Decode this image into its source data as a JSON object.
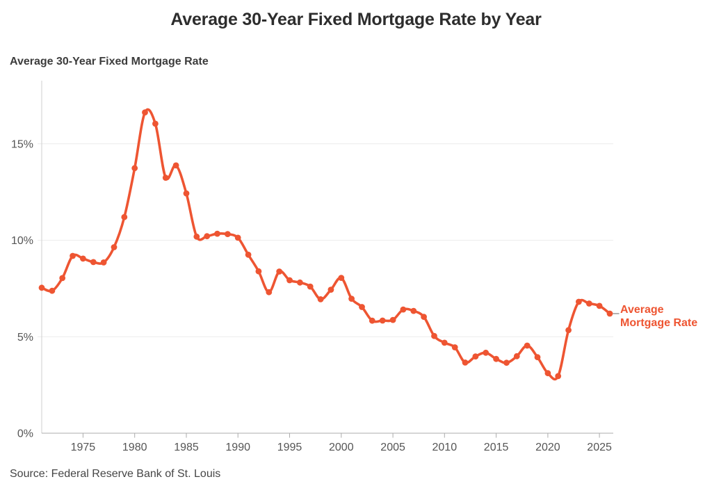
{
  "header": {
    "title": "Average 30-Year Fixed Mortgage Rate by Year"
  },
  "subtitle": "Average 30-Year Fixed Mortgage Rate",
  "source_note": "Source: Federal Reserve Bank of St. Louis",
  "legend": {
    "lines": [
      "Average",
      "Mortgage Rate"
    ]
  },
  "colors": {
    "line": "#ee5532",
    "grid": "#ececec",
    "spine": "#cfcfcf",
    "axis": "#ababab",
    "tick_label": "#555555",
    "connector": "#999999",
    "title": "#2d2d2d",
    "source_text": "#454545"
  },
  "chart_data": {
    "type": "line",
    "title": "Average 30-Year Fixed Mortgage Rate by Year",
    "axis_title": "Average 30-Year Fixed Mortgage Rate",
    "xlabel": "",
    "ylabel": "",
    "grid": "horizontal",
    "legend_position": "right-of-last-point",
    "marker": "circle",
    "xlim": [
      1971,
      2026
    ],
    "ylim": [
      0,
      18.2
    ],
    "xticks": [
      1975,
      1980,
      1985,
      1990,
      1995,
      2000,
      2005,
      2010,
      2015,
      2020,
      2025
    ],
    "yticks": [
      0,
      5,
      10,
      15
    ],
    "ytick_labels": [
      "0%",
      "5%",
      "10%",
      "15%"
    ],
    "series": [
      {
        "name": "Average Mortgage Rate",
        "x": [
          1971,
          1972,
          1973,
          1974,
          1975,
          1976,
          1977,
          1978,
          1979,
          1980,
          1981,
          1982,
          1983,
          1984,
          1985,
          1986,
          1987,
          1988,
          1989,
          1990,
          1991,
          1992,
          1993,
          1994,
          1995,
          1996,
          1997,
          1998,
          1999,
          2000,
          2001,
          2002,
          2003,
          2004,
          2005,
          2006,
          2007,
          2008,
          2009,
          2010,
          2011,
          2012,
          2013,
          2014,
          2015,
          2016,
          2017,
          2018,
          2019,
          2020,
          2021,
          2022,
          2023,
          2024,
          2025,
          2026
        ],
        "values": [
          7.54,
          7.38,
          8.04,
          9.19,
          9.05,
          8.87,
          8.85,
          9.64,
          11.2,
          13.74,
          16.63,
          16.04,
          13.24,
          13.88,
          12.43,
          10.19,
          10.21,
          10.34,
          10.32,
          10.13,
          9.25,
          8.39,
          7.31,
          8.38,
          7.93,
          7.81,
          7.6,
          6.94,
          7.44,
          8.05,
          6.97,
          6.54,
          5.83,
          5.84,
          5.87,
          6.41,
          6.34,
          6.03,
          5.04,
          4.69,
          4.45,
          3.66,
          3.98,
          4.17,
          3.85,
          3.65,
          3.99,
          4.54,
          3.94,
          3.11,
          2.96,
          5.34,
          6.81,
          6.72,
          6.6,
          6.2
        ]
      }
    ],
    "source": "Source: Federal Reserve Bank of St. Louis"
  }
}
